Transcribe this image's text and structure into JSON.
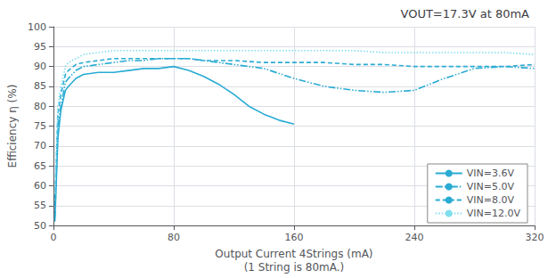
{
  "chart_data": {
    "type": "line",
    "title": "VOUT=17.3V at 80mA",
    "xlabel": "Output Current 4Strings (mA)\n(1 String is 80mA.)",
    "ylabel": "Efficiency η (%)",
    "xlim": [
      0,
      320
    ],
    "ylim": [
      50,
      100
    ],
    "xticks": [
      0,
      80,
      160,
      240,
      320
    ],
    "yticks": [
      50,
      55,
      60,
      65,
      70,
      75,
      80,
      85,
      90,
      95,
      100
    ],
    "grid": true,
    "legend": "lower right",
    "series": [
      {
        "name": "VIN=3.6V",
        "color": "#29ABD4",
        "line_style": "solid",
        "x": [
          1,
          3,
          5,
          8,
          10,
          15,
          20,
          30,
          40,
          50,
          60,
          70,
          80,
          90,
          100,
          110,
          120,
          130,
          140,
          150,
          160
        ],
        "values": [
          51,
          72,
          79,
          84,
          85,
          87,
          88,
          88.5,
          88.5,
          89,
          89.5,
          89.5,
          90,
          89,
          87.5,
          85.5,
          83,
          80,
          78,
          76.5,
          75.5
        ]
      },
      {
        "name": "VIN=5.0V",
        "color": "#29ABD4",
        "line_style": "dashdotdot",
        "x": [
          1,
          3,
          5,
          8,
          10,
          15,
          20,
          30,
          40,
          50,
          60,
          70,
          80,
          90,
          100,
          110,
          120,
          130,
          140,
          160,
          180,
          200,
          220,
          240,
          260,
          280,
          300,
          320
        ],
        "values": [
          52,
          75,
          80,
          86,
          87,
          89,
          90,
          90.5,
          91,
          91.5,
          91.5,
          92,
          92,
          92,
          91.5,
          91,
          90.5,
          90,
          89.5,
          87,
          85,
          84,
          83.5,
          84,
          87,
          89.5,
          90,
          89.5
        ]
      },
      {
        "name": "VIN=8.0V",
        "color": "#29ABD4",
        "line_style": "dashed",
        "x": [
          1,
          3,
          5,
          8,
          10,
          15,
          20,
          30,
          40,
          50,
          60,
          70,
          80,
          90,
          100,
          120,
          140,
          160,
          180,
          200,
          220,
          240,
          260,
          280,
          300,
          320
        ],
        "values": [
          55,
          78,
          83,
          88,
          89,
          90.5,
          91,
          91.5,
          92,
          92,
          92,
          92,
          92,
          92,
          91.5,
          91.5,
          91,
          91,
          91,
          90.5,
          90.5,
          90,
          90,
          90,
          90,
          90.5
        ]
      },
      {
        "name": "VIN=12.0V",
        "color": "#7FDDEE",
        "line_style": "dotted",
        "x": [
          1,
          3,
          5,
          8,
          10,
          15,
          20,
          30,
          40,
          50,
          60,
          70,
          80,
          100,
          120,
          140,
          160,
          180,
          200,
          220,
          240,
          260,
          280,
          300,
          320
        ],
        "values": [
          58,
          80,
          85,
          90,
          91,
          92,
          93,
          93.5,
          94,
          94,
          94,
          94,
          94,
          94,
          94,
          94,
          94,
          94,
          94,
          93.5,
          93.5,
          93.5,
          93.5,
          93.5,
          93
        ]
      }
    ]
  }
}
